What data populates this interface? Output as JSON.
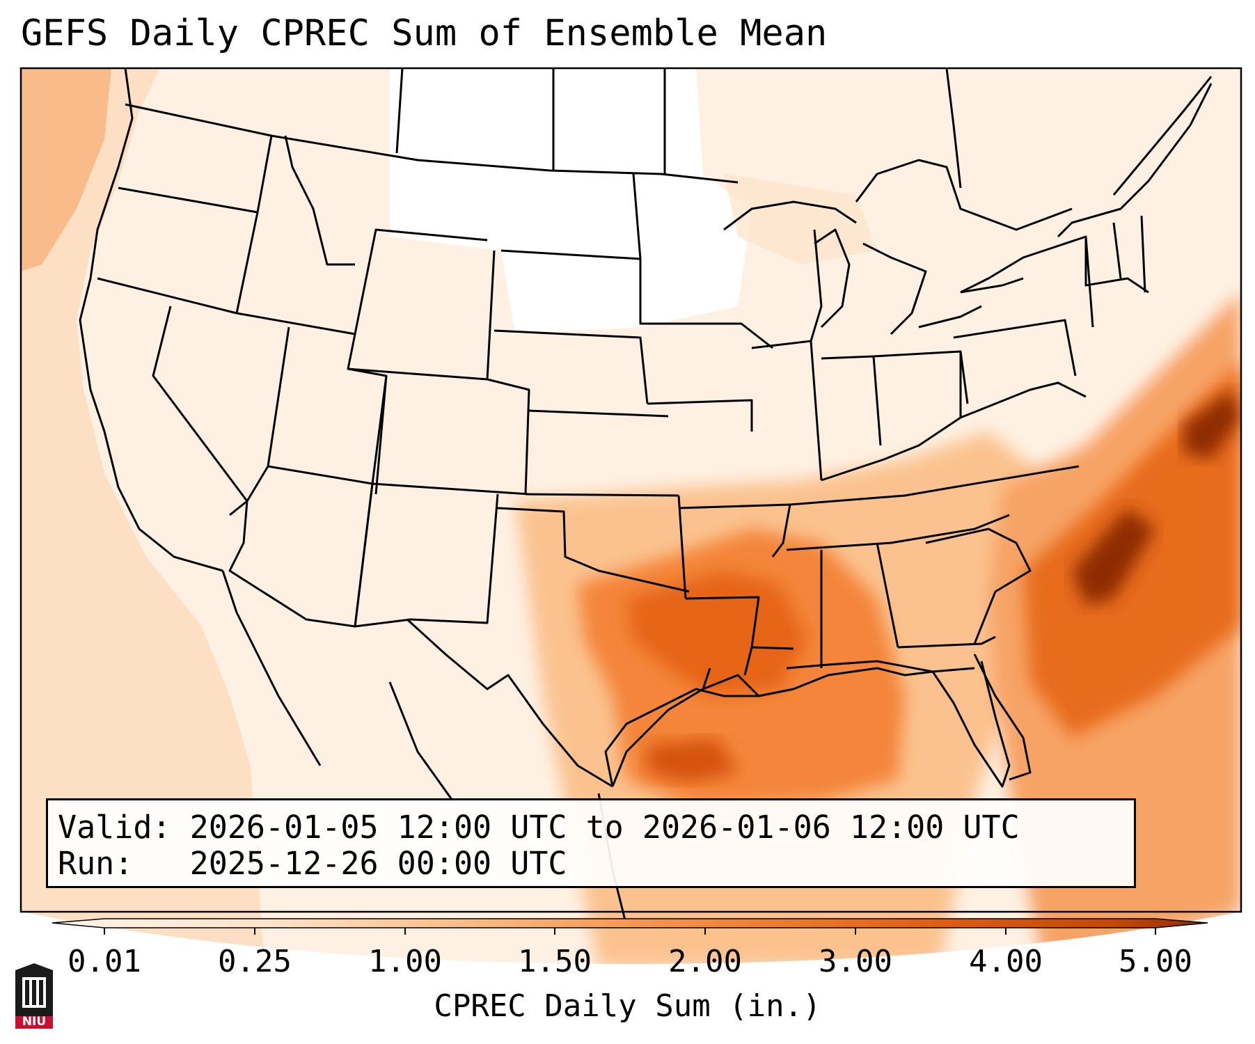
{
  "title": "GEFS Daily CPREC Sum of Ensemble Mean",
  "info": {
    "valid_line": "Valid: 2026-01-05 12:00 UTC to 2026-01-06 12:00 UTC",
    "run_line": "Run:   2025-12-26 00:00 UTC"
  },
  "colorbar": {
    "label": "CPREC Daily Sum (in.)",
    "ticks": [
      "0.01",
      "0.25",
      "1.00",
      "1.50",
      "2.00",
      "3.00",
      "4.00",
      "5.00"
    ],
    "colors": [
      "#fff4ea",
      "#fde3c8",
      "#fbc28f",
      "#f89d58",
      "#ee7d2e",
      "#e05f11",
      "#c44703",
      "#8e2a05"
    ],
    "extend": "both"
  },
  "logo": {
    "text": "NIU",
    "color": "#c8102e"
  },
  "map": {
    "region": "Continental United States with Gulf of Mexico",
    "basemap_lines": "state boundaries and coastlines",
    "max_precip_regions": [
      "Gulf Coast",
      "Lower Mississippi Valley",
      "Western Atlantic off Carolinas"
    ]
  }
}
